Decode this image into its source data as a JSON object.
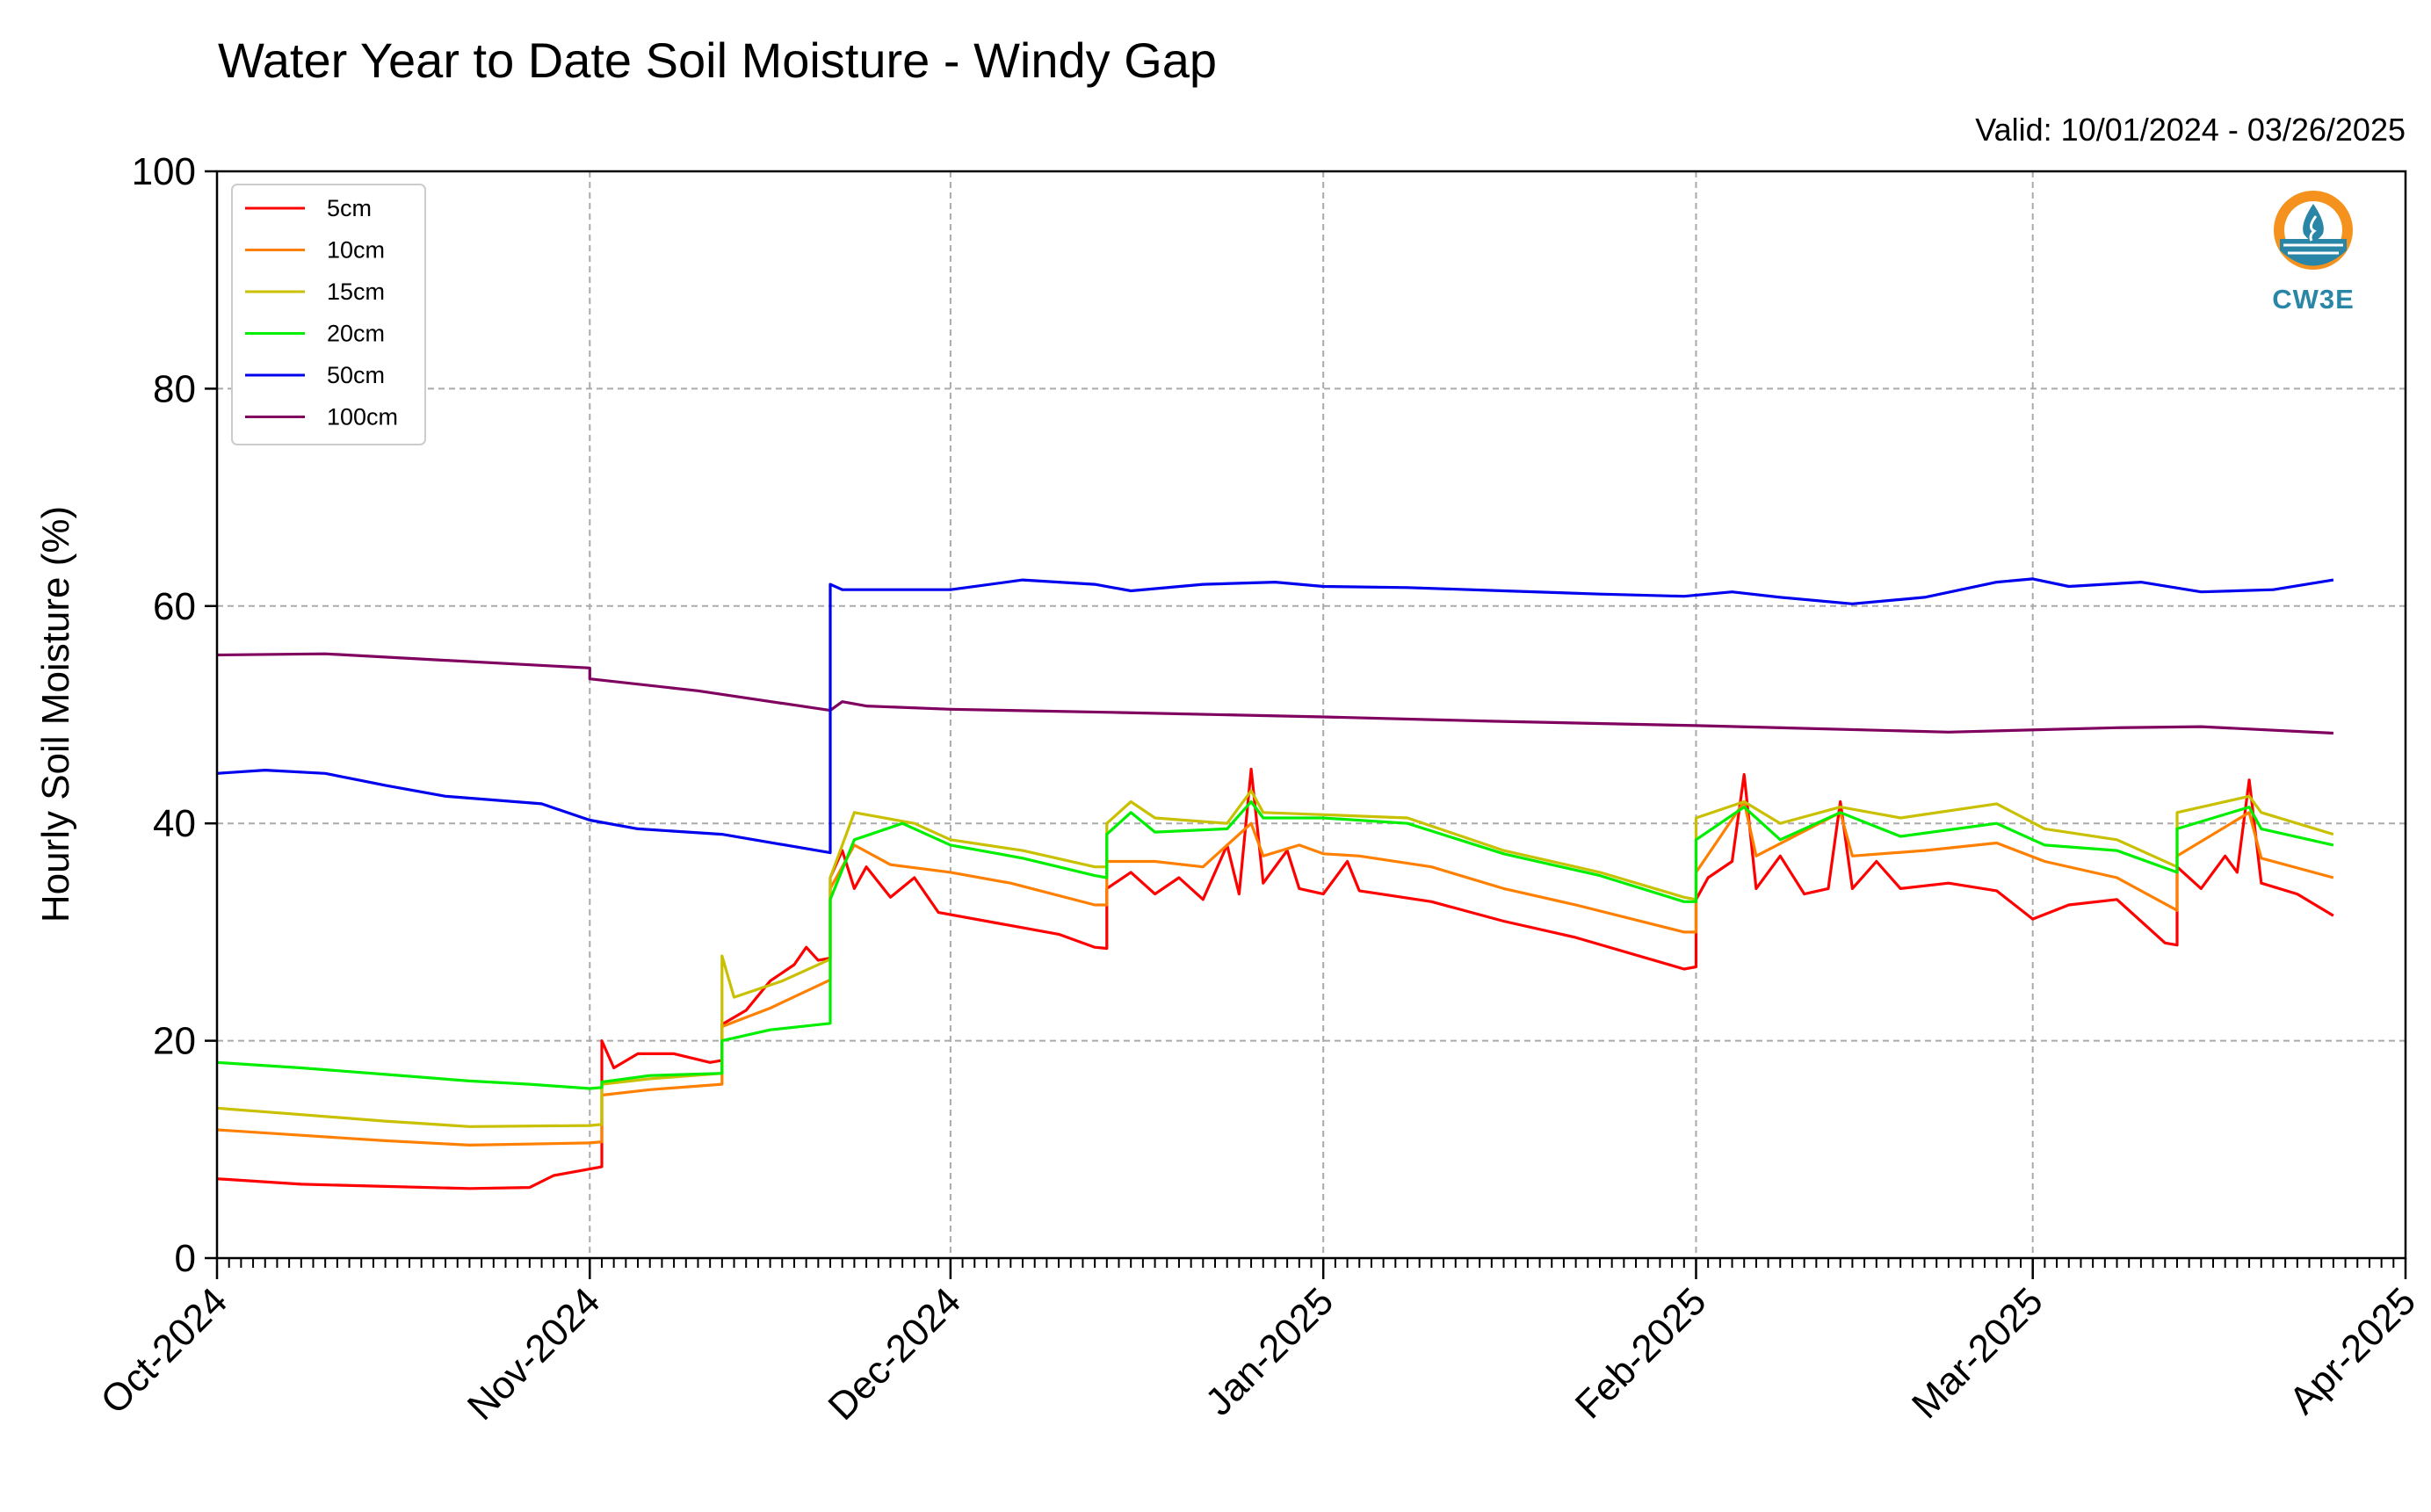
{
  "chart_data": {
    "type": "line",
    "title": "Water Year to Date Soil Moisture - Windy Gap",
    "valid_label": "Valid: 10/01/2024 - 03/26/2025",
    "ylabel": "Hourly Soil Moisture (%)",
    "xlabel": "",
    "ylim": [
      0,
      100
    ],
    "yticks": [
      0,
      20,
      40,
      60,
      80,
      100
    ],
    "xlim": [
      "2024-10-01",
      "2025-04-01"
    ],
    "xticks": [
      {
        "date": "2024-10-01",
        "label": "Oct-2024"
      },
      {
        "date": "2024-11-01",
        "label": "Nov-2024"
      },
      {
        "date": "2024-12-01",
        "label": "Dec-2024"
      },
      {
        "date": "2025-01-01",
        "label": "Jan-2025"
      },
      {
        "date": "2025-02-01",
        "label": "Feb-2025"
      },
      {
        "date": "2025-03-01",
        "label": "Mar-2025"
      },
      {
        "date": "2025-04-01",
        "label": "Apr-2025"
      }
    ],
    "grid": true,
    "legend_position": "top-left",
    "series": [
      {
        "name": "5cm",
        "color": "#ff0000",
        "points": [
          [
            "2024-10-01",
            7.3
          ],
          [
            "2024-10-08",
            6.8
          ],
          [
            "2024-10-15",
            6.6
          ],
          [
            "2024-10-22",
            6.4
          ],
          [
            "2024-10-27",
            6.5
          ],
          [
            "2024-10-29",
            7.6
          ],
          [
            "2024-11-01",
            8.2
          ],
          [
            "2024-11-02",
            8.4
          ],
          [
            "2024-11-02",
            20.0
          ],
          [
            "2024-11-03",
            17.5
          ],
          [
            "2024-11-05",
            18.8
          ],
          [
            "2024-11-08",
            18.8
          ],
          [
            "2024-11-11",
            18.0
          ],
          [
            "2024-11-12",
            18.2
          ],
          [
            "2024-11-12",
            21.5
          ],
          [
            "2024-11-14",
            22.8
          ],
          [
            "2024-11-16",
            25.5
          ],
          [
            "2024-11-18",
            27.0
          ],
          [
            "2024-11-19",
            28.6
          ],
          [
            "2024-11-20",
            27.4
          ],
          [
            "2024-11-21",
            27.6
          ],
          [
            "2024-11-21",
            35.0
          ],
          [
            "2024-11-22",
            37.5
          ],
          [
            "2024-11-23",
            34.0
          ],
          [
            "2024-11-24",
            36.0
          ],
          [
            "2024-11-26",
            33.2
          ],
          [
            "2024-11-28",
            35.0
          ],
          [
            "2024-11-30",
            31.8
          ],
          [
            "2024-12-05",
            30.8
          ],
          [
            "2024-12-10",
            29.8
          ],
          [
            "2024-12-13",
            28.6
          ],
          [
            "2024-12-14",
            28.5
          ],
          [
            "2024-12-14",
            34.0
          ],
          [
            "2024-12-16",
            35.5
          ],
          [
            "2024-12-18",
            33.5
          ],
          [
            "2024-12-20",
            35.0
          ],
          [
            "2024-12-22",
            33.0
          ],
          [
            "2024-12-24",
            38.0
          ],
          [
            "2024-12-25",
            33.5
          ],
          [
            "2024-12-26",
            45.0
          ],
          [
            "2024-12-27",
            34.5
          ],
          [
            "2024-12-29",
            37.5
          ],
          [
            "2024-12-30",
            34.0
          ],
          [
            "2025-01-01",
            33.5
          ],
          [
            "2025-01-03",
            36.5
          ],
          [
            "2025-01-04",
            33.8
          ],
          [
            "2025-01-10",
            32.8
          ],
          [
            "2025-01-16",
            31.0
          ],
          [
            "2025-01-22",
            29.5
          ],
          [
            "2025-01-31",
            26.6
          ],
          [
            "2025-02-01",
            26.8
          ],
          [
            "2025-02-01",
            33.0
          ],
          [
            "2025-02-02",
            35.0
          ],
          [
            "2025-02-04",
            36.5
          ],
          [
            "2025-02-05",
            44.5
          ],
          [
            "2025-02-06",
            34.0
          ],
          [
            "2025-02-08",
            37.0
          ],
          [
            "2025-02-10",
            33.5
          ],
          [
            "2025-02-12",
            34.0
          ],
          [
            "2025-02-13",
            42.0
          ],
          [
            "2025-02-14",
            34.0
          ],
          [
            "2025-02-16",
            36.5
          ],
          [
            "2025-02-18",
            34.0
          ],
          [
            "2025-02-22",
            34.5
          ],
          [
            "2025-02-26",
            33.8
          ],
          [
            "2025-03-01",
            31.2
          ],
          [
            "2025-03-04",
            32.5
          ],
          [
            "2025-03-08",
            33.0
          ],
          [
            "2025-03-12",
            29.0
          ],
          [
            "2025-03-13",
            28.8
          ],
          [
            "2025-03-13",
            36.0
          ],
          [
            "2025-03-15",
            34.0
          ],
          [
            "2025-03-17",
            37.0
          ],
          [
            "2025-03-18",
            35.5
          ],
          [
            "2025-03-19",
            44.0
          ],
          [
            "2025-03-20",
            34.5
          ],
          [
            "2025-03-23",
            33.5
          ],
          [
            "2025-03-26",
            31.5
          ]
        ]
      },
      {
        "name": "10cm",
        "color": "#ff8000",
        "points": [
          [
            "2024-10-01",
            11.8
          ],
          [
            "2024-10-08",
            11.3
          ],
          [
            "2024-10-15",
            10.8
          ],
          [
            "2024-10-22",
            10.4
          ],
          [
            "2024-11-01",
            10.6
          ],
          [
            "2024-11-02",
            10.7
          ],
          [
            "2024-11-02",
            15.0
          ],
          [
            "2024-11-06",
            15.5
          ],
          [
            "2024-11-12",
            16.0
          ],
          [
            "2024-11-12",
            21.3
          ],
          [
            "2024-11-16",
            23.0
          ],
          [
            "2024-11-21",
            25.6
          ],
          [
            "2024-11-21",
            34.0
          ],
          [
            "2024-11-23",
            38.0
          ],
          [
            "2024-11-26",
            36.2
          ],
          [
            "2024-12-01",
            35.5
          ],
          [
            "2024-12-06",
            34.5
          ],
          [
            "2024-12-13",
            32.5
          ],
          [
            "2024-12-14",
            32.5
          ],
          [
            "2024-12-14",
            36.5
          ],
          [
            "2024-12-18",
            36.5
          ],
          [
            "2024-12-22",
            36.0
          ],
          [
            "2024-12-26",
            40.0
          ],
          [
            "2024-12-27",
            37.0
          ],
          [
            "2024-12-30",
            38.0
          ],
          [
            "2025-01-01",
            37.2
          ],
          [
            "2025-01-04",
            37.0
          ],
          [
            "2025-01-10",
            36.0
          ],
          [
            "2025-01-16",
            34.0
          ],
          [
            "2025-01-22",
            32.5
          ],
          [
            "2025-01-31",
            30.0
          ],
          [
            "2025-02-01",
            30.0
          ],
          [
            "2025-02-01",
            35.5
          ],
          [
            "2025-02-05",
            42.0
          ],
          [
            "2025-02-06",
            37.0
          ],
          [
            "2025-02-13",
            41.0
          ],
          [
            "2025-02-14",
            37.0
          ],
          [
            "2025-02-20",
            37.5
          ],
          [
            "2025-02-26",
            38.2
          ],
          [
            "2025-03-02",
            36.5
          ],
          [
            "2025-03-08",
            35.0
          ],
          [
            "2025-03-13",
            32.0
          ],
          [
            "2025-03-13",
            37.0
          ],
          [
            "2025-03-19",
            41.0
          ],
          [
            "2025-03-20",
            36.8
          ],
          [
            "2025-03-26",
            35.0
          ]
        ]
      },
      {
        "name": "15cm",
        "color": "#c8c000",
        "points": [
          [
            "2024-10-01",
            13.8
          ],
          [
            "2024-10-08",
            13.2
          ],
          [
            "2024-10-15",
            12.6
          ],
          [
            "2024-10-22",
            12.1
          ],
          [
            "2024-11-01",
            12.2
          ],
          [
            "2024-11-02",
            12.3
          ],
          [
            "2024-11-02",
            16.0
          ],
          [
            "2024-11-06",
            16.5
          ],
          [
            "2024-11-12",
            17.0
          ],
          [
            "2024-11-12",
            27.8
          ],
          [
            "2024-11-13",
            24.0
          ],
          [
            "2024-11-17",
            25.5
          ],
          [
            "2024-11-21",
            27.5
          ],
          [
            "2024-11-21",
            35.0
          ],
          [
            "2024-11-23",
            41.0
          ],
          [
            "2024-11-28",
            40.0
          ],
          [
            "2024-12-01",
            38.5
          ],
          [
            "2024-12-07",
            37.5
          ],
          [
            "2024-12-13",
            36.0
          ],
          [
            "2024-12-14",
            36.0
          ],
          [
            "2024-12-14",
            40.0
          ],
          [
            "2024-12-16",
            42.0
          ],
          [
            "2024-12-18",
            40.5
          ],
          [
            "2024-12-24",
            40.0
          ],
          [
            "2024-12-26",
            43.0
          ],
          [
            "2024-12-27",
            41.0
          ],
          [
            "2025-01-01",
            40.8
          ],
          [
            "2025-01-08",
            40.5
          ],
          [
            "2025-01-16",
            37.5
          ],
          [
            "2025-01-24",
            35.5
          ],
          [
            "2025-01-31",
            33.2
          ],
          [
            "2025-02-01",
            33.0
          ],
          [
            "2025-02-01",
            40.5
          ],
          [
            "2025-02-05",
            42.0
          ],
          [
            "2025-02-08",
            40.0
          ],
          [
            "2025-02-13",
            41.5
          ],
          [
            "2025-02-18",
            40.5
          ],
          [
            "2025-02-26",
            41.8
          ],
          [
            "2025-03-02",
            39.5
          ],
          [
            "2025-03-08",
            38.5
          ],
          [
            "2025-03-13",
            36.0
          ],
          [
            "2025-03-13",
            41.0
          ],
          [
            "2025-03-19",
            42.5
          ],
          [
            "2025-03-20",
            41.0
          ],
          [
            "2025-03-26",
            39.0
          ]
        ]
      },
      {
        "name": "20cm",
        "color": "#00ee00",
        "points": [
          [
            "2024-10-01",
            18.0
          ],
          [
            "2024-10-08",
            17.5
          ],
          [
            "2024-10-15",
            16.9
          ],
          [
            "2024-10-22",
            16.3
          ],
          [
            "2024-10-27",
            16.0
          ],
          [
            "2024-11-01",
            15.6
          ],
          [
            "2024-11-02",
            15.7
          ],
          [
            "2024-11-02",
            16.2
          ],
          [
            "2024-11-06",
            16.8
          ],
          [
            "2024-11-12",
            17.0
          ],
          [
            "2024-11-12",
            20.0
          ],
          [
            "2024-11-16",
            21.0
          ],
          [
            "2024-11-21",
            21.6
          ],
          [
            "2024-11-21",
            33.0
          ],
          [
            "2024-11-23",
            38.5
          ],
          [
            "2024-11-27",
            40.0
          ],
          [
            "2024-12-01",
            38.0
          ],
          [
            "2024-12-07",
            36.8
          ],
          [
            "2024-12-13",
            35.2
          ],
          [
            "2024-12-14",
            35.0
          ],
          [
            "2024-12-14",
            39.0
          ],
          [
            "2024-12-16",
            41.0
          ],
          [
            "2024-12-18",
            39.2
          ],
          [
            "2024-12-24",
            39.5
          ],
          [
            "2024-12-26",
            42.0
          ],
          [
            "2024-12-27",
            40.5
          ],
          [
            "2025-01-01",
            40.5
          ],
          [
            "2025-01-08",
            40.0
          ],
          [
            "2025-01-16",
            37.2
          ],
          [
            "2025-01-24",
            35.2
          ],
          [
            "2025-01-31",
            32.8
          ],
          [
            "2025-02-01",
            32.8
          ],
          [
            "2025-02-01",
            38.5
          ],
          [
            "2025-02-05",
            41.5
          ],
          [
            "2025-02-08",
            38.5
          ],
          [
            "2025-02-13",
            41.0
          ],
          [
            "2025-02-18",
            38.8
          ],
          [
            "2025-02-26",
            40.0
          ],
          [
            "2025-03-02",
            38.0
          ],
          [
            "2025-03-08",
            37.5
          ],
          [
            "2025-03-13",
            35.5
          ],
          [
            "2025-03-13",
            39.5
          ],
          [
            "2025-03-19",
            41.5
          ],
          [
            "2025-03-20",
            39.5
          ],
          [
            "2025-03-26",
            38.0
          ]
        ]
      },
      {
        "name": "50cm",
        "color": "#0000ee",
        "points": [
          [
            "2024-10-01",
            44.6
          ],
          [
            "2024-10-05",
            44.9
          ],
          [
            "2024-10-10",
            44.6
          ],
          [
            "2024-10-15",
            43.5
          ],
          [
            "2024-10-20",
            42.5
          ],
          [
            "2024-10-28",
            41.8
          ],
          [
            "2024-11-01",
            40.3
          ],
          [
            "2024-11-05",
            39.5
          ],
          [
            "2024-11-12",
            39.0
          ],
          [
            "2024-11-21",
            37.3
          ],
          [
            "2024-11-21",
            62.0
          ],
          [
            "2024-11-22",
            61.5
          ],
          [
            "2024-12-01",
            61.5
          ],
          [
            "2024-12-07",
            62.4
          ],
          [
            "2024-12-13",
            62.0
          ],
          [
            "2024-12-16",
            61.4
          ],
          [
            "2024-12-22",
            62.0
          ],
          [
            "2024-12-28",
            62.2
          ],
          [
            "2025-01-01",
            61.8
          ],
          [
            "2025-01-08",
            61.7
          ],
          [
            "2025-01-16",
            61.4
          ],
          [
            "2025-01-24",
            61.1
          ],
          [
            "2025-01-31",
            60.9
          ],
          [
            "2025-02-04",
            61.3
          ],
          [
            "2025-02-08",
            60.8
          ],
          [
            "2025-02-14",
            60.2
          ],
          [
            "2025-02-20",
            60.8
          ],
          [
            "2025-02-26",
            62.2
          ],
          [
            "2025-03-01",
            62.5
          ],
          [
            "2025-03-04",
            61.8
          ],
          [
            "2025-03-10",
            62.2
          ],
          [
            "2025-03-15",
            61.3
          ],
          [
            "2025-03-21",
            61.5
          ],
          [
            "2025-03-26",
            62.4
          ]
        ]
      },
      {
        "name": "100cm",
        "color": "#800060",
        "points": [
          [
            "2024-10-01",
            55.5
          ],
          [
            "2024-10-10",
            55.6
          ],
          [
            "2024-10-20",
            55.0
          ],
          [
            "2024-11-01",
            54.3
          ],
          [
            "2024-11-01",
            53.3
          ],
          [
            "2024-11-10",
            52.2
          ],
          [
            "2024-11-21",
            50.4
          ],
          [
            "2024-11-22",
            51.2
          ],
          [
            "2024-11-24",
            50.8
          ],
          [
            "2024-12-01",
            50.5
          ],
          [
            "2024-12-15",
            50.2
          ],
          [
            "2025-01-01",
            49.8
          ],
          [
            "2025-01-15",
            49.4
          ],
          [
            "2025-02-01",
            49.0
          ],
          [
            "2025-02-15",
            48.6
          ],
          [
            "2025-02-22",
            48.4
          ],
          [
            "2025-03-08",
            48.8
          ],
          [
            "2025-03-15",
            48.9
          ],
          [
            "2025-03-26",
            48.3
          ]
        ]
      }
    ]
  },
  "logo": {
    "text": "CW3E",
    "ring_color": "#f5921e",
    "water_color": "#2a86a6"
  }
}
